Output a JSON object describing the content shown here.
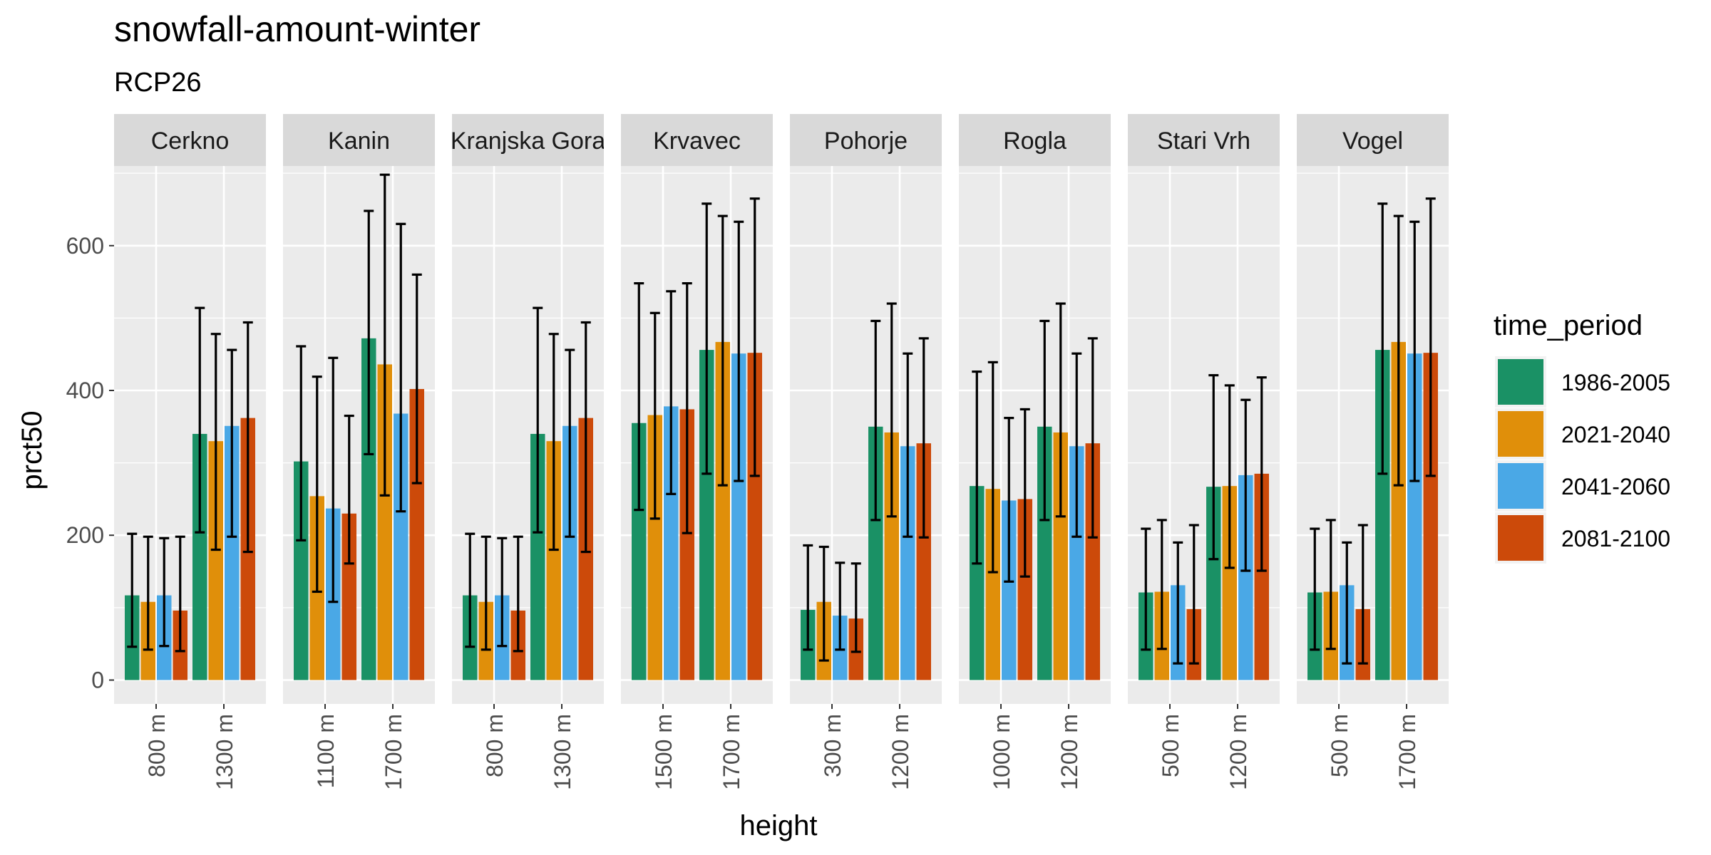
{
  "chart_data": {
    "type": "bar",
    "title": "snowfall-amount-winter",
    "subtitle": "RCP26",
    "xlabel": "height",
    "ylabel": "prct50",
    "ylim": [
      -33,
      710
    ],
    "yticks": [
      0,
      200,
      400,
      600
    ],
    "grid": true,
    "legend": {
      "title": "time_period",
      "position": "right",
      "entries": [
        "1986-2005",
        "2021-2040",
        "2041-2060",
        "2081-2100"
      ]
    },
    "series_colors": {
      "1986-2005": "#1a9165",
      "2021-2040": "#e08f0a",
      "2041-2060": "#4aa8e6",
      "2081-2100": "#cc4a0a"
    },
    "panels": [
      {
        "name": "Cerkno",
        "groups": [
          {
            "label": "800 m",
            "bars": [
              {
                "period": "1986-2005",
                "value": 117,
                "low": 46,
                "high": 202
              },
              {
                "period": "2021-2040",
                "value": 108,
                "low": 42,
                "high": 198
              },
              {
                "period": "2041-2060",
                "value": 117,
                "low": 47,
                "high": 196
              },
              {
                "period": "2081-2100",
                "value": 96,
                "low": 40,
                "high": 198
              }
            ]
          },
          {
            "label": "1300 m",
            "bars": [
              {
                "period": "1986-2005",
                "value": 340,
                "low": 204,
                "high": 514
              },
              {
                "period": "2021-2040",
                "value": 330,
                "low": 180,
                "high": 478
              },
              {
                "period": "2041-2060",
                "value": 351,
                "low": 198,
                "high": 456
              },
              {
                "period": "2081-2100",
                "value": 362,
                "low": 177,
                "high": 494
              }
            ]
          }
        ]
      },
      {
        "name": "Kanin",
        "groups": [
          {
            "label": "1100 m",
            "bars": [
              {
                "period": "1986-2005",
                "value": 302,
                "low": 193,
                "high": 461
              },
              {
                "period": "2021-2040",
                "value": 254,
                "low": 122,
                "high": 419
              },
              {
                "period": "2041-2060",
                "value": 237,
                "low": 108,
                "high": 445
              },
              {
                "period": "2081-2100",
                "value": 230,
                "low": 161,
                "high": 365
              }
            ]
          },
          {
            "label": "1700 m",
            "bars": [
              {
                "period": "1986-2005",
                "value": 472,
                "low": 312,
                "high": 648
              },
              {
                "period": "2021-2040",
                "value": 436,
                "low": 255,
                "high": 698
              },
              {
                "period": "2041-2060",
                "value": 368,
                "low": 233,
                "high": 630
              },
              {
                "period": "2081-2100",
                "value": 402,
                "low": 272,
                "high": 560
              }
            ]
          }
        ]
      },
      {
        "name": "Kranjska Gora",
        "groups": [
          {
            "label": "800 m",
            "bars": [
              {
                "period": "1986-2005",
                "value": 117,
                "low": 46,
                "high": 202
              },
              {
                "period": "2021-2040",
                "value": 108,
                "low": 42,
                "high": 198
              },
              {
                "period": "2041-2060",
                "value": 117,
                "low": 47,
                "high": 196
              },
              {
                "period": "2081-2100",
                "value": 96,
                "low": 40,
                "high": 198
              }
            ]
          },
          {
            "label": "1300 m",
            "bars": [
              {
                "period": "1986-2005",
                "value": 340,
                "low": 204,
                "high": 514
              },
              {
                "period": "2021-2040",
                "value": 330,
                "low": 180,
                "high": 478
              },
              {
                "period": "2041-2060",
                "value": 351,
                "low": 198,
                "high": 456
              },
              {
                "period": "2081-2100",
                "value": 362,
                "low": 177,
                "high": 494
              }
            ]
          }
        ]
      },
      {
        "name": "Krvavec",
        "groups": [
          {
            "label": "1500 m",
            "bars": [
              {
                "period": "1986-2005",
                "value": 355,
                "low": 235,
                "high": 548
              },
              {
                "period": "2021-2040",
                "value": 366,
                "low": 223,
                "high": 507
              },
              {
                "period": "2041-2060",
                "value": 378,
                "low": 257,
                "high": 537
              },
              {
                "period": "2081-2100",
                "value": 374,
                "low": 203,
                "high": 548
              }
            ]
          },
          {
            "label": "1700 m",
            "bars": [
              {
                "period": "1986-2005",
                "value": 456,
                "low": 285,
                "high": 658
              },
              {
                "period": "2021-2040",
                "value": 467,
                "low": 269,
                "high": 641
              },
              {
                "period": "2041-2060",
                "value": 451,
                "low": 275,
                "high": 633
              },
              {
                "period": "2081-2100",
                "value": 452,
                "low": 282,
                "high": 665
              }
            ]
          }
        ]
      },
      {
        "name": "Pohorje",
        "groups": [
          {
            "label": "300 m",
            "bars": [
              {
                "period": "1986-2005",
                "value": 97,
                "low": 42,
                "high": 186
              },
              {
                "period": "2021-2040",
                "value": 108,
                "low": 27,
                "high": 184
              },
              {
                "period": "2041-2060",
                "value": 89,
                "low": 42,
                "high": 162
              },
              {
                "period": "2081-2100",
                "value": 85,
                "low": 39,
                "high": 161
              }
            ]
          },
          {
            "label": "1200 m",
            "bars": [
              {
                "period": "1986-2005",
                "value": 350,
                "low": 221,
                "high": 496
              },
              {
                "period": "2021-2040",
                "value": 342,
                "low": 226,
                "high": 520
              },
              {
                "period": "2041-2060",
                "value": 323,
                "low": 198,
                "high": 451
              },
              {
                "period": "2081-2100",
                "value": 327,
                "low": 197,
                "high": 472
              }
            ]
          }
        ]
      },
      {
        "name": "Rogla",
        "groups": [
          {
            "label": "1000 m",
            "bars": [
              {
                "period": "1986-2005",
                "value": 268,
                "low": 161,
                "high": 426
              },
              {
                "period": "2021-2040",
                "value": 264,
                "low": 149,
                "high": 439
              },
              {
                "period": "2041-2060",
                "value": 248,
                "low": 136,
                "high": 362
              },
              {
                "period": "2081-2100",
                "value": 250,
                "low": 143,
                "high": 374
              }
            ]
          },
          {
            "label": "1200 m",
            "bars": [
              {
                "period": "1986-2005",
                "value": 350,
                "low": 221,
                "high": 496
              },
              {
                "period": "2021-2040",
                "value": 342,
                "low": 226,
                "high": 520
              },
              {
                "period": "2041-2060",
                "value": 323,
                "low": 198,
                "high": 451
              },
              {
                "period": "2081-2100",
                "value": 327,
                "low": 197,
                "high": 472
              }
            ]
          }
        ]
      },
      {
        "name": "Stari Vrh",
        "groups": [
          {
            "label": "500 m",
            "bars": [
              {
                "period": "1986-2005",
                "value": 121,
                "low": 42,
                "high": 209
              },
              {
                "period": "2021-2040",
                "value": 122,
                "low": 43,
                "high": 221
              },
              {
                "period": "2041-2060",
                "value": 131,
                "low": 23,
                "high": 190
              },
              {
                "period": "2081-2100",
                "value": 98,
                "low": 23,
                "high": 214
              }
            ]
          },
          {
            "label": "1200 m",
            "bars": [
              {
                "period": "1986-2005",
                "value": 267,
                "low": 167,
                "high": 421
              },
              {
                "period": "2021-2040",
                "value": 268,
                "low": 155,
                "high": 407
              },
              {
                "period": "2041-2060",
                "value": 283,
                "low": 151,
                "high": 387
              },
              {
                "period": "2081-2100",
                "value": 285,
                "low": 151,
                "high": 418
              }
            ]
          }
        ]
      },
      {
        "name": "Vogel",
        "groups": [
          {
            "label": "500 m",
            "bars": [
              {
                "period": "1986-2005",
                "value": 121,
                "low": 42,
                "high": 209
              },
              {
                "period": "2021-2040",
                "value": 122,
                "low": 43,
                "high": 221
              },
              {
                "period": "2041-2060",
                "value": 131,
                "low": 23,
                "high": 190
              },
              {
                "period": "2081-2100",
                "value": 98,
                "low": 23,
                "high": 214
              }
            ]
          },
          {
            "label": "1700 m",
            "bars": [
              {
                "period": "1986-2005",
                "value": 456,
                "low": 285,
                "high": 658
              },
              {
                "period": "2021-2040",
                "value": 467,
                "low": 269,
                "high": 641
              },
              {
                "period": "2041-2060",
                "value": 451,
                "low": 275,
                "high": 633
              },
              {
                "period": "2081-2100",
                "value": 452,
                "low": 282,
                "high": 665
              }
            ]
          }
        ]
      }
    ]
  }
}
